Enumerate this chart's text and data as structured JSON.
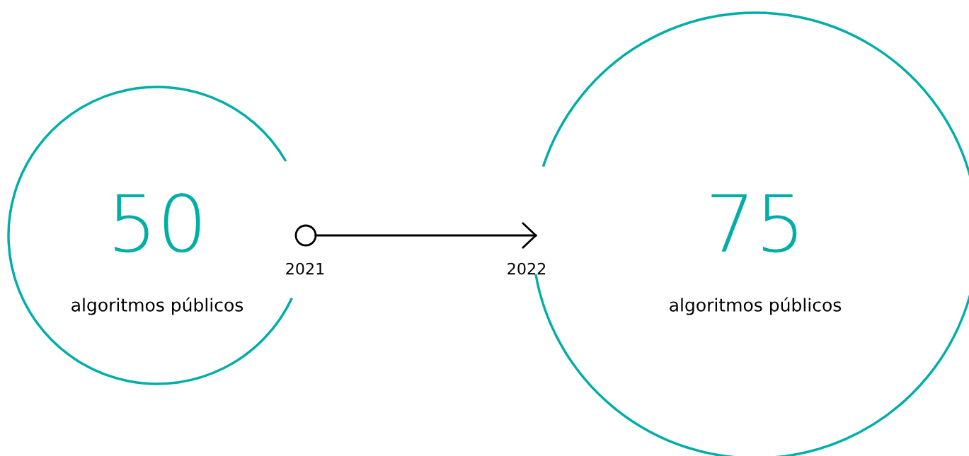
{
  "chart_data": {
    "type": "other",
    "categories": [
      "2021",
      "2022"
    ],
    "values": [
      50,
      75
    ],
    "data_labels": true,
    "colors": [
      "#00aea8",
      "#00aea8"
    ],
    "annotations": [
      "algoritmos públicos",
      "algoritmos públicos"
    ]
  }
}
